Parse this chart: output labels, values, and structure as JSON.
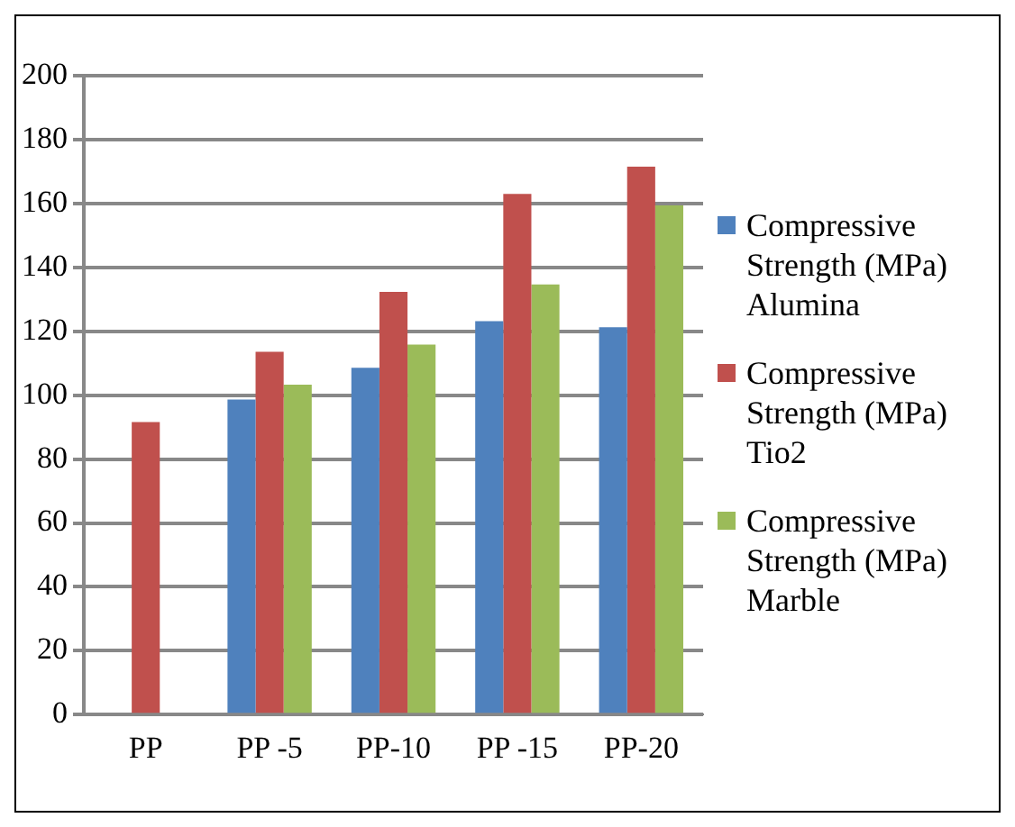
{
  "chart_data": {
    "type": "bar",
    "categories": [
      "PP",
      "PP -5",
      "PP-10",
      "PP -15",
      "PP-20"
    ],
    "series": [
      {
        "name": "Compressive Strength (MPa) Alumina",
        "color": "#4f81bd",
        "values": [
          null,
          98.7,
          108.6,
          123.2,
          121.3
        ]
      },
      {
        "name": "Compressive Strength (MPa) Tio2",
        "color": "#c0504d",
        "values": [
          91.6,
          113.6,
          132.4,
          163.1,
          171.6
        ]
      },
      {
        "name": "Compressive Strength (MPa) Marble",
        "color": "#9bbb59",
        "values": [
          null,
          103.3,
          115.9,
          134.7,
          159.5
        ]
      }
    ],
    "ylim": [
      0,
      200
    ],
    "yticks": [
      0,
      20,
      40,
      60,
      80,
      100,
      120,
      140,
      160,
      180,
      200
    ],
    "grid": "y",
    "legend": "right"
  }
}
